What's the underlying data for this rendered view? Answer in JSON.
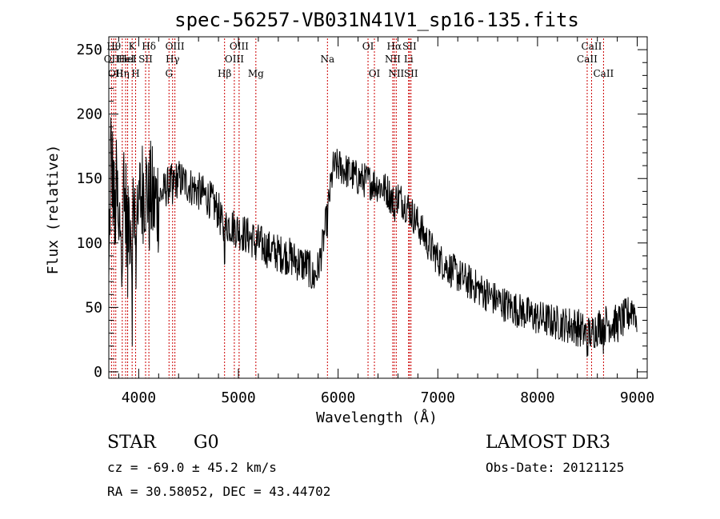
{
  "chart_data": {
    "type": "line",
    "title": "spec-56257-VB031N41V1_sp16-135.fits",
    "xlabel": "Wavelength (Å)",
    "ylabel": "Flux (relative)",
    "xlim": [
      3700,
      9100
    ],
    "ylim": [
      -5,
      260
    ],
    "xticks": [
      4000,
      5000,
      6000,
      7000,
      8000,
      9000
    ],
    "xtick_labels": [
      "4000",
      "5000",
      "6000",
      "7000",
      "8000",
      "9000"
    ],
    "yticks": [
      0,
      50,
      100,
      150,
      200,
      250
    ],
    "ytick_labels": [
      "0",
      "50",
      "100",
      "150",
      "200",
      "250"
    ],
    "x_minor_step": 200,
    "y_minor_step": 10,
    "grid": false,
    "series": [
      {
        "name": "flux",
        "color": "#000000",
        "anchors": [
          [
            3700,
            60
          ],
          [
            3720,
            180
          ],
          [
            3740,
            150
          ],
          [
            3760,
            130
          ],
          [
            3780,
            140
          ],
          [
            3800,
            110
          ],
          [
            3850,
            130
          ],
          [
            3900,
            120
          ],
          [
            3950,
            125
          ],
          [
            4000,
            130
          ],
          [
            4050,
            145
          ],
          [
            4100,
            140
          ],
          [
            4150,
            130
          ],
          [
            4200,
            135
          ],
          [
            4300,
            145
          ],
          [
            4400,
            150
          ],
          [
            4500,
            145
          ],
          [
            4600,
            140
          ],
          [
            4700,
            135
          ],
          [
            4800,
            125
          ],
          [
            4850,
            110
          ],
          [
            4900,
            115
          ],
          [
            5000,
            110
          ],
          [
            5100,
            105
          ],
          [
            5200,
            100
          ],
          [
            5300,
            95
          ],
          [
            5400,
            92
          ],
          [
            5500,
            90
          ],
          [
            5600,
            85
          ],
          [
            5700,
            82
          ],
          [
            5750,
            72
          ],
          [
            5800,
            80
          ],
          [
            5850,
            100
          ],
          [
            5900,
            128
          ],
          [
            5950,
            158
          ],
          [
            6000,
            160
          ],
          [
            6100,
            155
          ],
          [
            6200,
            150
          ],
          [
            6300,
            148
          ],
          [
            6400,
            145
          ],
          [
            6500,
            140
          ],
          [
            6550,
            132
          ],
          [
            6600,
            136
          ],
          [
            6700,
            128
          ],
          [
            6800,
            115
          ],
          [
            6900,
            100
          ],
          [
            7000,
            88
          ],
          [
            7200,
            75
          ],
          [
            7400,
            65
          ],
          [
            7600,
            55
          ],
          [
            7800,
            48
          ],
          [
            8000,
            42
          ],
          [
            8200,
            38
          ],
          [
            8400,
            35
          ],
          [
            8500,
            28
          ],
          [
            8600,
            35
          ],
          [
            8700,
            38
          ],
          [
            8800,
            37
          ],
          [
            8900,
            43
          ],
          [
            8950,
            50
          ],
          [
            9000,
            45
          ]
        ],
        "dips": [
          [
            3728,
            20
          ],
          [
            3760,
            30
          ],
          [
            3798,
            25
          ],
          [
            3835,
            30
          ],
          [
            3889,
            45
          ],
          [
            3934,
            70
          ],
          [
            3969,
            60
          ],
          [
            4102,
            25
          ],
          [
            4340,
            20
          ],
          [
            4861,
            18
          ],
          [
            5175,
            10
          ],
          [
            5893,
            10
          ],
          [
            6563,
            12
          ],
          [
            8498,
            10
          ],
          [
            8542,
            12
          ],
          [
            8662,
            12
          ],
          [
            9000,
            35
          ]
        ],
        "noise_amplitude": 14,
        "note": "Raw spectrum sampled as smooth continuum anchors with absorption dips; high-frequency noise is rendered procedurally from noise_amplitude."
      }
    ],
    "lines": [
      {
        "wavelength": 3727,
        "label": "OII",
        "row": 2
      },
      {
        "wavelength": 3750,
        "label": "Hθ",
        "row": 1
      },
      {
        "wavelength": 3770,
        "label": "OII",
        "row": 3
      },
      {
        "wavelength": 3835,
        "label": "Hη",
        "row": 3
      },
      {
        "wavelength": 3869,
        "label": "HeI",
        "row": 2
      },
      {
        "wavelength": 3889,
        "label": "HeI",
        "row": 2
      },
      {
        "wavelength": 3934,
        "label": "K",
        "row": 1
      },
      {
        "wavelength": 3969,
        "label": "H",
        "row": 3
      },
      {
        "wavelength": 4069,
        "label": "SII",
        "row": 2
      },
      {
        "wavelength": 4102,
        "label": "Hδ",
        "row": 1
      },
      {
        "wavelength": 4340,
        "label": "Hγ",
        "row": 2
      },
      {
        "wavelength": 4304,
        "label": "G",
        "row": 3
      },
      {
        "wavelength": 4363,
        "label": "OIII",
        "row": 1
      },
      {
        "wavelength": 4861,
        "label": "Hβ",
        "row": 3
      },
      {
        "wavelength": 4959,
        "label": "OIII",
        "row": 2
      },
      {
        "wavelength": 5007,
        "label": "OIII",
        "row": 1
      },
      {
        "wavelength": 5175,
        "label": "Mg",
        "row": 3
      },
      {
        "wavelength": 5893,
        "label": "Na",
        "row": 2
      },
      {
        "wavelength": 6300,
        "label": "OI",
        "row": 1
      },
      {
        "wavelength": 6364,
        "label": "OI",
        "row": 3
      },
      {
        "wavelength": 6548,
        "label": "NII",
        "row": 2
      },
      {
        "wavelength": 6563,
        "label": "Hα",
        "row": 1
      },
      {
        "wavelength": 6583,
        "label": "NII",
        "row": 3
      },
      {
        "wavelength": 6707,
        "label": "Li",
        "row": 2
      },
      {
        "wavelength": 6716,
        "label": "SII",
        "row": 1
      },
      {
        "wavelength": 6731,
        "label": "SII",
        "row": 3
      },
      {
        "wavelength": 8498,
        "label": "CaII",
        "row": 2
      },
      {
        "wavelength": 8542,
        "label": "CaII",
        "row": 1
      },
      {
        "wavelength": 8662,
        "label": "CaII",
        "row": 3
      }
    ],
    "line_color": "#cc0000"
  },
  "info": {
    "class": "STAR",
    "subclass": "G0",
    "survey": "LAMOST DR3",
    "redshift": "cz = -69.0 ± 45.2 km/s",
    "obs_date": "Obs-Date: 20121125",
    "coords": "RA =  30.58052, DEC =  43.44702"
  }
}
